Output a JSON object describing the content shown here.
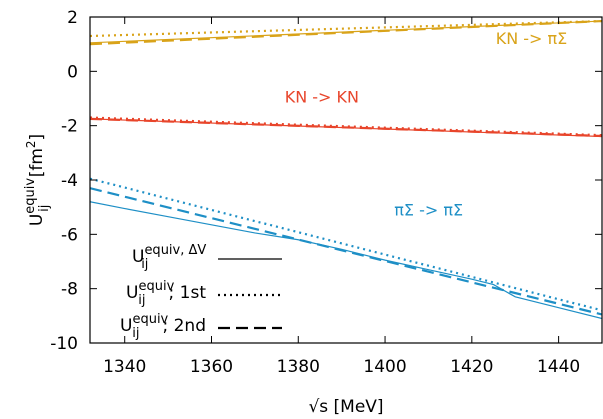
{
  "chart_data": {
    "type": "line",
    "xlabel": "√s  [MeV]",
    "ylabel": "U_ij^equiv [fm²]",
    "xlim": [
      1332,
      1450
    ],
    "ylim": [
      -10,
      2
    ],
    "xticks": [
      1340,
      1360,
      1380,
      1400,
      1420,
      1440
    ],
    "yticks": [
      -10,
      -8,
      -6,
      -4,
      -2,
      0,
      2
    ],
    "x_tick_labels": [
      "1340",
      "1360",
      "1380",
      "1400",
      "1420",
      "1440"
    ],
    "y_tick_labels": [
      "-10",
      "-8",
      "-6",
      "-4",
      "-2",
      "0",
      "2"
    ],
    "grid": false,
    "annotations": [
      {
        "text": "KN -> πΣ",
        "color": "#d9a319",
        "x": 1442,
        "y": 1.0
      },
      {
        "text": "KN -> KN",
        "color": "#e8452b",
        "x": 1394,
        "y": -1.15
      },
      {
        "text": "πΣ -> πΣ",
        "color": "#1e8fc6",
        "x": 1418,
        "y": -5.3
      }
    ],
    "legend": {
      "position": "bottom-left",
      "entries": [
        {
          "main": "U",
          "sub": "ij",
          "sup": "equiv, ΔV",
          "suffix": "",
          "style": "solid"
        },
        {
          "main": "U",
          "sub": "ij",
          "sup": "equiv",
          "suffix": "; 1st",
          "style": "dotted"
        },
        {
          "main": "U",
          "sub": "ij",
          "sup": "equiv",
          "suffix": "; 2nd",
          "style": "dashed"
        }
      ]
    },
    "series": [
      {
        "group": "KN -> πΣ",
        "style": "solid",
        "color": "#d9a319",
        "x": [
          1332,
          1450
        ],
        "y": [
          1.05,
          1.85
        ]
      },
      {
        "group": "KN -> πΣ",
        "style": "dotted",
        "color": "#d9a319",
        "x": [
          1332,
          1450
        ],
        "y": [
          1.3,
          1.85
        ]
      },
      {
        "group": "KN -> πΣ",
        "style": "dashed",
        "color": "#d9a319",
        "x": [
          1332,
          1450
        ],
        "y": [
          1.0,
          1.85
        ]
      },
      {
        "group": "KN -> KN",
        "style": "solid",
        "color": "#e8452b",
        "x": [
          1332,
          1450
        ],
        "y": [
          -1.75,
          -2.4
        ]
      },
      {
        "group": "KN -> KN",
        "style": "dotted",
        "color": "#e8452b",
        "x": [
          1332,
          1450
        ],
        "y": [
          -1.7,
          -2.35
        ]
      },
      {
        "group": "KN -> KN",
        "style": "dashed",
        "color": "#e8452b",
        "x": [
          1332,
          1450
        ],
        "y": [
          -1.75,
          -2.38
        ]
      },
      {
        "group": "πΣ -> πΣ",
        "style": "solid",
        "color": "#1e8fc6",
        "x": [
          1332,
          1340,
          1350,
          1360,
          1370,
          1380,
          1390,
          1400,
          1410,
          1420,
          1425,
          1430,
          1440,
          1450
        ],
        "y": [
          -4.8,
          -5.05,
          -5.35,
          -5.65,
          -5.95,
          -6.2,
          -6.55,
          -6.95,
          -7.3,
          -7.65,
          -7.85,
          -8.3,
          -8.7,
          -9.1
        ]
      },
      {
        "group": "πΣ -> πΣ",
        "style": "dotted",
        "color": "#1e8fc6",
        "x": [
          1332,
          1450
        ],
        "y": [
          -3.95,
          -8.8
        ]
      },
      {
        "group": "πΣ -> πΣ",
        "style": "dashed",
        "color": "#1e8fc6",
        "x": [
          1332,
          1450
        ],
        "y": [
          -4.3,
          -8.95
        ]
      }
    ]
  }
}
